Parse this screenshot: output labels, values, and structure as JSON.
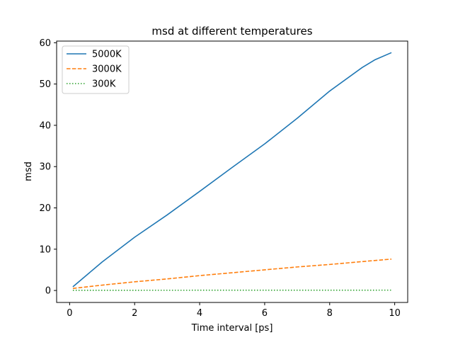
{
  "chart_data": {
    "type": "line",
    "title": "msd at different temperatures",
    "xlabel": "Time interval [ps]",
    "ylabel": "msd",
    "xlim": [
      -0.4,
      10.4
    ],
    "ylim": [
      -2.9,
      60.4
    ],
    "xticks": [
      0,
      2,
      4,
      6,
      8,
      10
    ],
    "yticks": [
      0,
      10,
      20,
      30,
      40,
      50,
      60
    ],
    "legend_position": "upper-left",
    "grid": false,
    "series": [
      {
        "name": "5000K",
        "color": "#1f77b4",
        "style": "solid",
        "x": [
          0.1,
          1,
          2,
          3,
          4,
          5,
          6,
          7,
          8,
          9,
          9.4,
          9.9
        ],
        "y": [
          0.9,
          6.9,
          12.9,
          18.3,
          24.0,
          29.8,
          35.5,
          41.7,
          48.3,
          54.0,
          55.9,
          57.6
        ]
      },
      {
        "name": "3000K",
        "color": "#ff7f0e",
        "style": "dashed",
        "x": [
          0.1,
          1,
          2,
          3,
          4,
          5,
          6,
          7,
          8,
          9,
          9.9
        ],
        "y": [
          0.5,
          1.3,
          2.1,
          2.8,
          3.6,
          4.3,
          5.0,
          5.7,
          6.3,
          7.0,
          7.6
        ]
      },
      {
        "name": "300K",
        "color": "#2ca02c",
        "style": "dotted",
        "x": [
          0.1,
          9.9
        ],
        "y": [
          0.05,
          0.08
        ]
      }
    ]
  }
}
